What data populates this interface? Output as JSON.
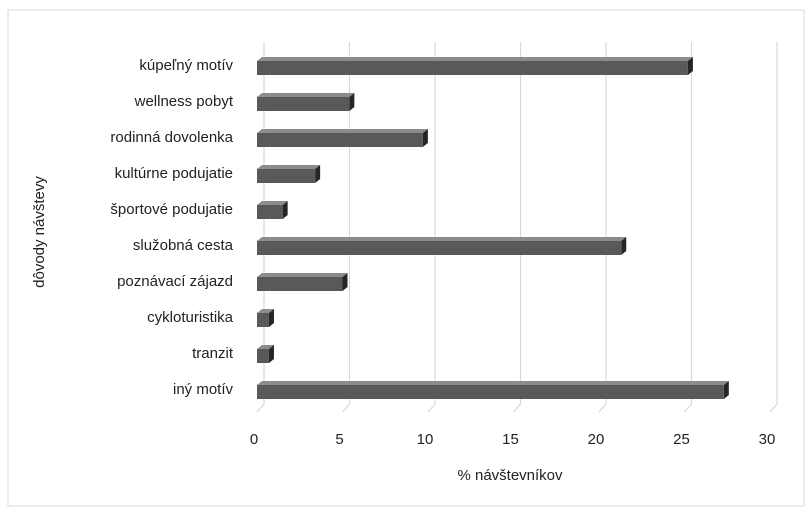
{
  "chart_data": {
    "type": "barh",
    "x_label": "% návštevníkov",
    "y_label": "dôvody návštevy",
    "categories": [
      "kúpeľný motív",
      "wellness pobyt",
      "rodinná dovolenka",
      "kultúrne podujatie",
      "športové podujatie",
      "služobná cesta",
      "poznávací zájazd",
      "cykloturistika",
      "tranzit",
      "iný motív"
    ],
    "values": [
      25.2,
      5.4,
      9.7,
      3.4,
      1.5,
      21.3,
      5.0,
      0.7,
      0.7,
      27.3
    ],
    "color": "#595959",
    "xlim": [
      0,
      30
    ],
    "xticks": [
      0,
      5,
      10,
      15,
      20,
      25,
      30
    ],
    "grid": true
  }
}
